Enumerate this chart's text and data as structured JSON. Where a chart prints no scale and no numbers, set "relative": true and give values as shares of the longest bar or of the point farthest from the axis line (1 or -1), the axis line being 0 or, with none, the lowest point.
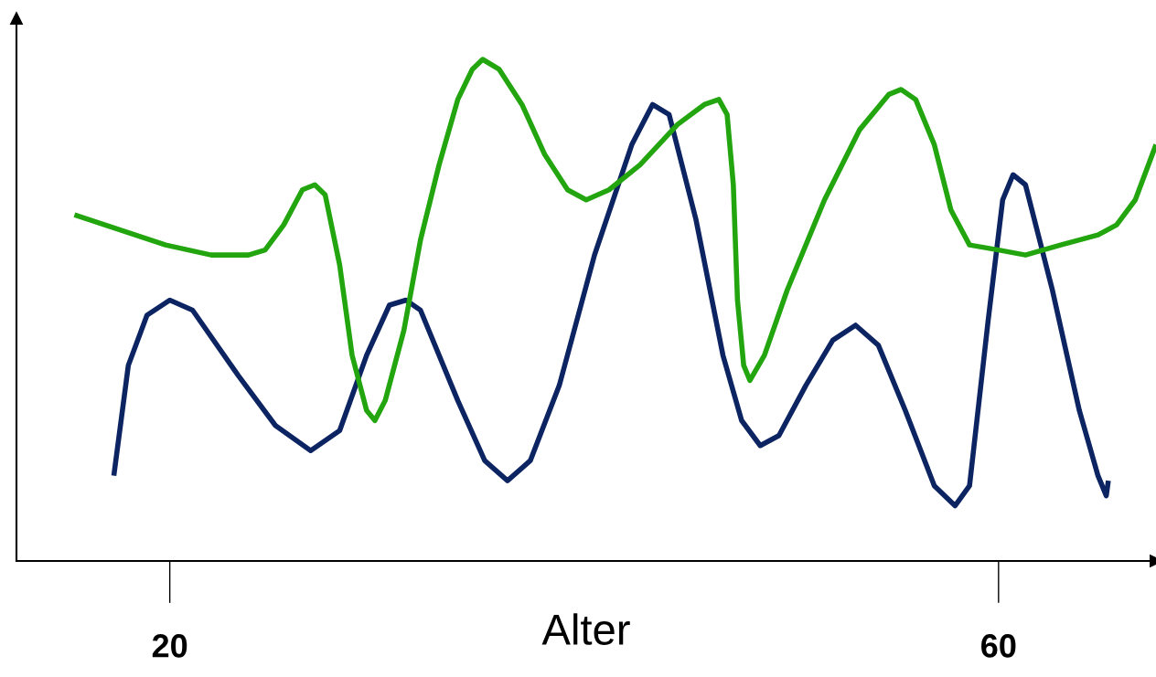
{
  "chart_data": {
    "type": "line",
    "relative": true,
    "xlabel": "Alter",
    "xlim": [
      12.6,
      67.6
    ],
    "xticks": [
      20,
      60
    ],
    "tick_labels": "x",
    "grid": false,
    "marker": "none",
    "line_style": "solid",
    "series": [
      {
        "color": "#0c2461",
        "x": [
          17.3,
          18.0,
          18.9,
          20.0,
          21.1,
          23.3,
          25.1,
          26.8,
          28.2,
          29.5,
          30.6,
          31.4,
          32.1,
          33.9,
          35.2,
          36.3,
          37.4,
          38.8,
          40.5,
          42.3,
          43.3,
          44.1,
          45.4,
          46.7,
          47.6,
          48.5,
          49.4,
          50.7,
          52.0,
          53.1,
          54.2,
          55.5,
          56.9,
          57.9,
          58.6,
          59.5,
          60.2,
          60.7,
          61.3,
          62.6,
          63.9,
          64.8,
          65.2,
          65.3
        ],
        "values": [
          0.17,
          0.39,
          0.49,
          0.52,
          0.5,
          0.37,
          0.27,
          0.22,
          0.26,
          0.41,
          0.51,
          0.52,
          0.5,
          0.32,
          0.2,
          0.16,
          0.2,
          0.35,
          0.61,
          0.83,
          0.91,
          0.89,
          0.68,
          0.41,
          0.28,
          0.23,
          0.25,
          0.35,
          0.44,
          0.47,
          0.43,
          0.3,
          0.15,
          0.11,
          0.15,
          0.48,
          0.72,
          0.77,
          0.75,
          0.54,
          0.3,
          0.17,
          0.13,
          0.16
        ]
      },
      {
        "color": "#22a50e",
        "x": [
          15.4,
          17.6,
          19.8,
          22.0,
          23.8,
          24.6,
          25.5,
          26.4,
          27.0,
          27.5,
          28.2,
          28.8,
          29.5,
          29.9,
          30.4,
          31.3,
          32.1,
          33.0,
          33.9,
          34.6,
          35.1,
          35.9,
          37.0,
          38.1,
          39.2,
          40.1,
          41.2,
          42.7,
          44.5,
          45.8,
          46.5,
          46.9,
          47.2,
          47.4,
          47.7,
          48.0,
          48.7,
          49.8,
          51.6,
          53.3,
          54.7,
          55.3,
          56.0,
          56.9,
          57.7,
          58.6,
          60.0,
          61.3,
          63.0,
          64.8,
          65.7,
          66.6,
          67.6
        ],
        "values": [
          0.69,
          0.66,
          0.63,
          0.61,
          0.61,
          0.62,
          0.67,
          0.74,
          0.75,
          0.73,
          0.59,
          0.41,
          0.3,
          0.28,
          0.32,
          0.46,
          0.64,
          0.79,
          0.92,
          0.98,
          1.0,
          0.98,
          0.91,
          0.81,
          0.74,
          0.72,
          0.74,
          0.79,
          0.87,
          0.91,
          0.92,
          0.89,
          0.75,
          0.52,
          0.39,
          0.36,
          0.41,
          0.54,
          0.72,
          0.86,
          0.93,
          0.94,
          0.92,
          0.83,
          0.7,
          0.63,
          0.62,
          0.61,
          0.63,
          0.65,
          0.67,
          0.72,
          0.83
        ]
      }
    ]
  }
}
